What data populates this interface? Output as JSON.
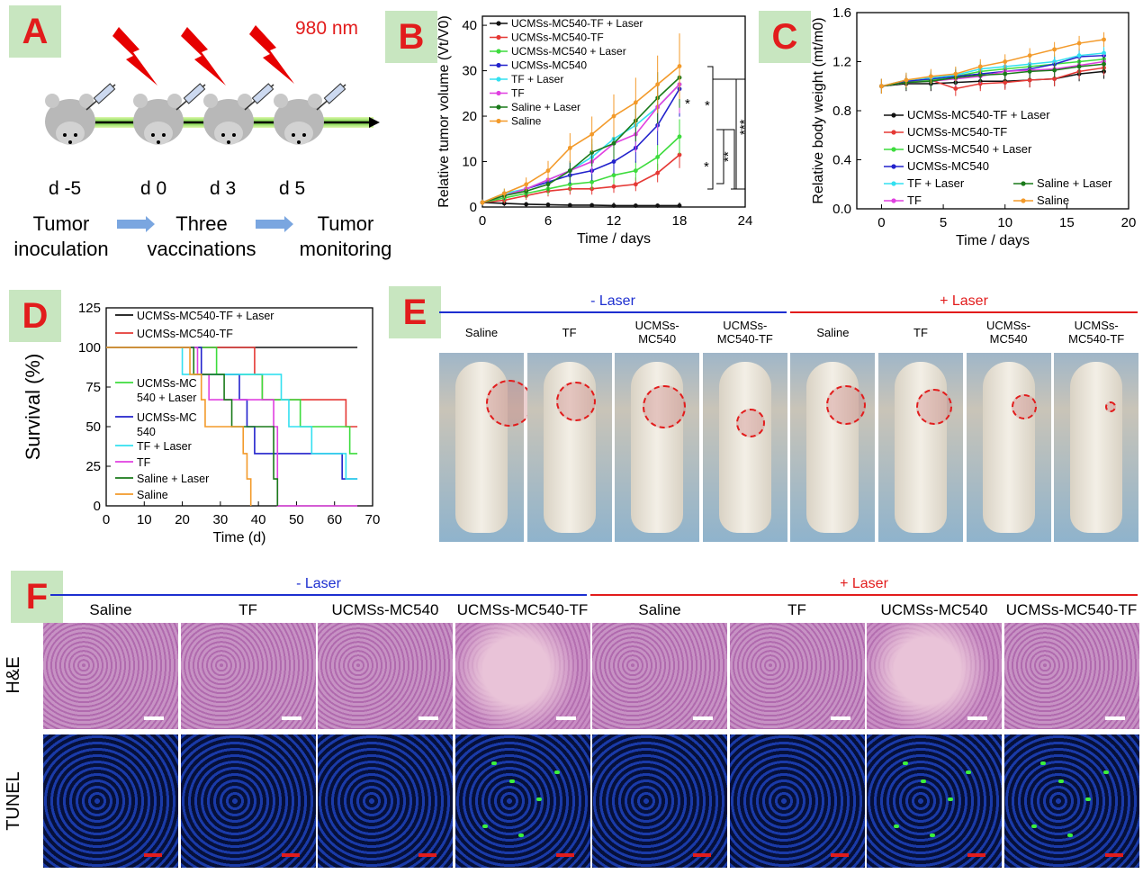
{
  "panels": {
    "A": "A",
    "B": "B",
    "C": "C",
    "D": "D",
    "E": "E",
    "F": "F"
  },
  "panelA": {
    "wavelength": "980 nm",
    "days": [
      "d -5",
      "d 0",
      "d 3",
      "d 5"
    ],
    "step1": [
      "Tumor",
      "inoculation"
    ],
    "step2": [
      "Three",
      "vaccinations"
    ],
    "step3": [
      "Tumor",
      "monitoring"
    ]
  },
  "groups": [
    "UCMSs-MC540-TF + Laser",
    "UCMSs-MC540-TF",
    "UCMSs-MC540 + Laser",
    "UCMSs-MC540",
    "TF + Laser",
    "TF",
    "Saline + Laser",
    "Saline"
  ],
  "colors": [
    "#111111",
    "#e53935",
    "#3ddc3d",
    "#2222cc",
    "#33e0f0",
    "#e040e0",
    "#1a7a1a",
    "#f39a2a"
  ],
  "chart_data": [
    {
      "id": "B",
      "type": "line",
      "xlabel": "Time / days",
      "ylabel": "Relative tumor volume (Vt/V0)",
      "xlim": [
        0,
        24
      ],
      "ylim": [
        0,
        42
      ],
      "xticks": [
        0,
        6,
        12,
        18,
        24
      ],
      "yticks": [
        0,
        10,
        20,
        30,
        40
      ],
      "x": [
        0,
        2,
        4,
        6,
        8,
        10,
        12,
        14,
        16,
        18
      ],
      "series": [
        {
          "name": "UCMSs-MC540-TF + Laser",
          "values": [
            1,
            0.8,
            0.6,
            0.5,
            0.4,
            0.4,
            0.3,
            0.3,
            0.3,
            0.3
          ]
        },
        {
          "name": "UCMSs-MC540-TF",
          "values": [
            1,
            1.5,
            2.5,
            3.5,
            4,
            4,
            4.5,
            5,
            7.5,
            11.5
          ]
        },
        {
          "name": "UCMSs-MC540 + Laser",
          "values": [
            1,
            2,
            3,
            4,
            5,
            5.5,
            7,
            8,
            11,
            15.5
          ]
        },
        {
          "name": "UCMSs-MC540",
          "values": [
            1,
            2.5,
            4,
            5.5,
            7,
            8,
            10,
            13,
            18,
            26
          ]
        },
        {
          "name": "TF + Laser",
          "values": [
            1,
            3,
            4,
            6,
            8,
            11,
            15,
            18,
            22,
            27
          ]
        },
        {
          "name": "TF",
          "values": [
            1,
            2.5,
            4,
            6,
            8,
            10,
            14,
            16,
            22,
            27
          ]
        },
        {
          "name": "Saline + Laser",
          "values": [
            1,
            2.5,
            3.5,
            5,
            8,
            12,
            14,
            19,
            24,
            28.5
          ]
        },
        {
          "name": "Saline",
          "values": [
            1,
            3,
            5,
            8,
            13,
            16,
            20,
            23,
            27,
            31
          ]
        }
      ],
      "significance": [
        "*",
        "*",
        "**",
        "*",
        "***"
      ]
    },
    {
      "id": "C",
      "type": "line",
      "xlabel": "Time / days",
      "ylabel": "Relative body weight (mt/m0)",
      "xlim": [
        -2,
        20
      ],
      "ylim": [
        0,
        1.6
      ],
      "xticks": [
        0,
        5,
        10,
        15,
        20
      ],
      "yticks": [
        0.0,
        0.4,
        0.8,
        1.2,
        1.6
      ],
      "x": [
        0,
        2,
        4,
        6,
        8,
        10,
        12,
        14,
        16,
        18
      ],
      "series": [
        {
          "name": "UCMSs-MC540-TF + Laser",
          "values": [
            1.0,
            1.02,
            1.02,
            1.03,
            1.04,
            1.04,
            1.05,
            1.06,
            1.1,
            1.12
          ]
        },
        {
          "name": "UCMSs-MC540-TF",
          "values": [
            1.0,
            1.03,
            1.05,
            0.98,
            1.02,
            1.03,
            1.05,
            1.06,
            1.12,
            1.15
          ]
        },
        {
          "name": "UCMSs-MC540 + Laser",
          "values": [
            1.0,
            1.03,
            1.05,
            1.08,
            1.12,
            1.14,
            1.16,
            1.18,
            1.2,
            1.22
          ]
        },
        {
          "name": "UCMSs-MC540",
          "values": [
            1.0,
            1.04,
            1.06,
            1.08,
            1.1,
            1.12,
            1.14,
            1.18,
            1.24,
            1.25
          ]
        },
        {
          "name": "TF + Laser",
          "values": [
            1.0,
            1.05,
            1.07,
            1.09,
            1.14,
            1.16,
            1.18,
            1.2,
            1.25,
            1.27
          ]
        },
        {
          "name": "TF",
          "values": [
            1.0,
            1.03,
            1.04,
            1.06,
            1.08,
            1.12,
            1.13,
            1.14,
            1.17,
            1.2
          ]
        },
        {
          "name": "Saline + Laser",
          "values": [
            1.0,
            1.03,
            1.04,
            1.07,
            1.09,
            1.1,
            1.12,
            1.13,
            1.16,
            1.18
          ]
        },
        {
          "name": "Saline",
          "values": [
            1.0,
            1.05,
            1.08,
            1.1,
            1.16,
            1.2,
            1.25,
            1.3,
            1.35,
            1.38
          ]
        }
      ]
    },
    {
      "id": "D",
      "type": "line",
      "xlabel": "Time (d)",
      "ylabel": "Survival (%)",
      "xlim": [
        0,
        70
      ],
      "ylim": [
        0,
        125
      ],
      "xticks": [
        0,
        10,
        20,
        30,
        40,
        50,
        60,
        70
      ],
      "yticks": [
        0,
        25,
        50,
        75,
        100,
        125
      ],
      "series": [
        {
          "name": "UCMSs-MC540-TF + Laser",
          "points": [
            [
              0,
              100
            ],
            [
              66,
              100
            ]
          ]
        },
        {
          "name": "UCMSs-MC540-TF",
          "points": [
            [
              0,
              100
            ],
            [
              39,
              100
            ],
            [
              39,
              83
            ],
            [
              41,
              83
            ],
            [
              41,
              67
            ],
            [
              63,
              67
            ],
            [
              63,
              50
            ],
            [
              66,
              50
            ]
          ]
        },
        {
          "name": "UCMSs-MC540 + Laser",
          "points": [
            [
              0,
              100
            ],
            [
              29,
              100
            ],
            [
              29,
              83
            ],
            [
              41,
              83
            ],
            [
              41,
              67
            ],
            [
              51,
              67
            ],
            [
              51,
              50
            ],
            [
              64,
              50
            ],
            [
              64,
              33
            ],
            [
              66,
              33
            ]
          ]
        },
        {
          "name": "UCMSs-MC540",
          "points": [
            [
              0,
              100
            ],
            [
              25,
              100
            ],
            [
              25,
              83
            ],
            [
              35,
              83
            ],
            [
              35,
              67
            ],
            [
              37,
              67
            ],
            [
              37,
              50
            ],
            [
              39,
              50
            ],
            [
              39,
              33
            ],
            [
              62,
              33
            ],
            [
              62,
              17
            ],
            [
              66,
              17
            ]
          ]
        },
        {
          "name": "TF + Laser",
          "points": [
            [
              0,
              100
            ],
            [
              20,
              100
            ],
            [
              20,
              83
            ],
            [
              46,
              83
            ],
            [
              46,
              67
            ],
            [
              48,
              67
            ],
            [
              48,
              50
            ],
            [
              54,
              50
            ],
            [
              54,
              33
            ],
            [
              63,
              33
            ],
            [
              63,
              17
            ],
            [
              66,
              17
            ]
          ]
        },
        {
          "name": "TF",
          "points": [
            [
              0,
              100
            ],
            [
              24,
              100
            ],
            [
              24,
              83
            ],
            [
              27,
              83
            ],
            [
              27,
              67
            ],
            [
              44,
              67
            ],
            [
              44,
              50
            ],
            [
              45,
              50
            ],
            [
              45,
              0
            ],
            [
              66,
              0
            ]
          ]
        },
        {
          "name": "Saline + Laser",
          "points": [
            [
              0,
              100
            ],
            [
              23,
              100
            ],
            [
              23,
              83
            ],
            [
              31,
              83
            ],
            [
              31,
              67
            ],
            [
              33,
              67
            ],
            [
              33,
              50
            ],
            [
              44,
              50
            ],
            [
              44,
              17
            ],
            [
              45,
              17
            ],
            [
              45,
              0
            ]
          ]
        },
        {
          "name": "Saline",
          "points": [
            [
              0,
              100
            ],
            [
              22,
              100
            ],
            [
              22,
              83
            ],
            [
              25,
              83
            ],
            [
              25,
              67
            ],
            [
              26,
              67
            ],
            [
              26,
              50
            ],
            [
              36,
              50
            ],
            [
              36,
              33
            ],
            [
              37,
              33
            ],
            [
              37,
              17
            ],
            [
              38,
              17
            ],
            [
              38,
              0
            ]
          ]
        }
      ],
      "legend": [
        "UCMSs-MC540-TF + Laser",
        "UCMSs-MC540-TF",
        "UCMSs-MC\n540 + Laser",
        "UCMSs-MC\n540",
        "TF + Laser",
        "TF",
        "Saline + Laser",
        "Saline"
      ]
    }
  ],
  "panelE": {
    "minus_laser": "- Laser",
    "plus_laser": "+ Laser",
    "captions": [
      "Saline",
      "TF",
      "UCMSs-\nMC540",
      "UCMSs-\nMC540-TF",
      "Saline",
      "TF",
      "UCMSs-\nMC540",
      "UCMSs-\nMC540-TF"
    ]
  },
  "panelF": {
    "minus_laser": "- Laser",
    "plus_laser": "+ Laser",
    "columns": [
      "Saline",
      "TF",
      "UCMSs-MC540",
      "UCMSs-MC540-TF",
      "Saline",
      "TF",
      "UCMSs-MC540",
      "UCMSs-MC540-TF"
    ],
    "rows": [
      "H&E",
      "TUNEL"
    ]
  }
}
